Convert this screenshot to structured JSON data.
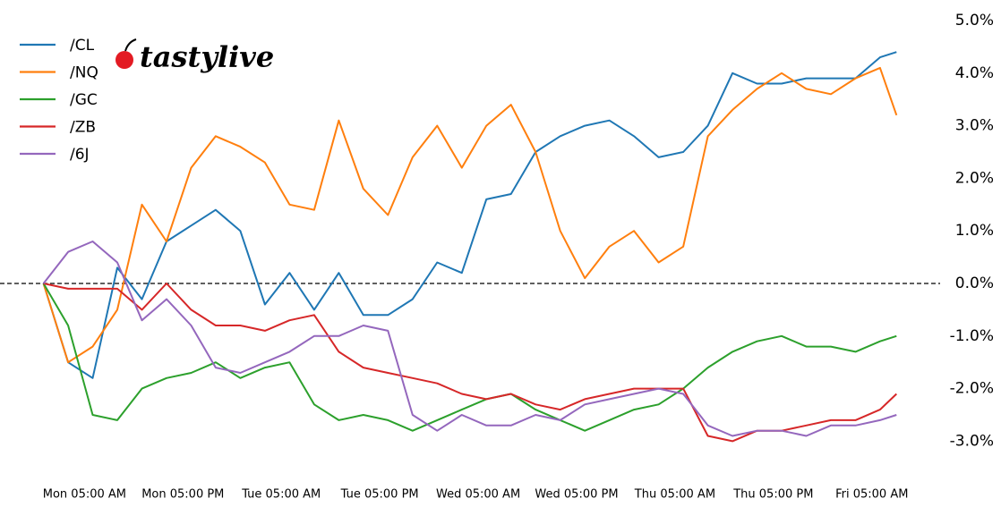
{
  "chart_data": {
    "type": "line",
    "logo": "tastylive",
    "x": [
      -5,
      -2,
      1,
      4,
      7,
      10,
      13,
      16,
      19,
      22,
      25,
      28,
      31,
      34,
      37,
      40,
      43,
      46,
      49,
      52,
      55,
      58,
      61,
      64,
      67,
      70,
      73,
      76,
      79,
      82,
      85,
      88,
      91,
      94,
      97,
      99
    ],
    "xlim": [
      -5.5,
      100.5
    ],
    "xticks": [
      {
        "value": 0,
        "label": "Mon 05:00 AM"
      },
      {
        "value": 12,
        "label": "Mon 05:00 PM"
      },
      {
        "value": 24,
        "label": "Tue 05:00 AM"
      },
      {
        "value": 36,
        "label": "Tue 05:00 PM"
      },
      {
        "value": 48,
        "label": "Wed 05:00 AM"
      },
      {
        "value": 60,
        "label": "Wed 05:00 PM"
      },
      {
        "value": 72,
        "label": "Thu 05:00 AM"
      },
      {
        "value": 84,
        "label": "Thu 05:00 PM"
      },
      {
        "value": 96,
        "label": "Fri 05:00 AM"
      }
    ],
    "ylim": [
      -3.6,
      5.2
    ],
    "yticks": [
      {
        "value": 5,
        "label": "5.0%"
      },
      {
        "value": 4,
        "label": "4.0%"
      },
      {
        "value": 3,
        "label": "3.0%"
      },
      {
        "value": 2,
        "label": "2.0%"
      },
      {
        "value": 1,
        "label": "1.0%"
      },
      {
        "value": 0,
        "label": "0.0%"
      },
      {
        "value": -1,
        "label": "-1.0%"
      },
      {
        "value": -2,
        "label": "-2.0%"
      },
      {
        "value": -3,
        "label": "-3.0%"
      }
    ],
    "y_axis_side": "right",
    "reference_line": 0,
    "grid": false,
    "legend": "upper left",
    "series": [
      {
        "name": "/CL",
        "color": "#1f77b4",
        "values": [
          0,
          -1.5,
          -1.8,
          0.3,
          -0.3,
          0.8,
          1.1,
          1.4,
          1.0,
          -0.4,
          0.2,
          -0.5,
          0.2,
          -0.6,
          -0.6,
          -0.3,
          0.4,
          0.2,
          1.6,
          1.7,
          2.5,
          2.8,
          3.0,
          3.1,
          2.8,
          2.4,
          2.5,
          3.0,
          4.0,
          3.8,
          3.8,
          3.9,
          3.9,
          3.9,
          4.3,
          4.4
        ]
      },
      {
        "name": "/NQ",
        "color": "#ff7f0e",
        "values": [
          0,
          -1.5,
          -1.2,
          -0.5,
          1.5,
          0.8,
          2.2,
          2.8,
          2.6,
          2.3,
          1.5,
          1.4,
          3.1,
          1.8,
          1.3,
          2.4,
          3.0,
          2.2,
          3.0,
          3.4,
          2.5,
          1.0,
          0.1,
          0.7,
          1.0,
          0.4,
          0.7,
          2.8,
          3.3,
          3.7,
          4.0,
          3.7,
          3.6,
          3.9,
          4.1,
          3.2
        ]
      },
      {
        "name": "/GC",
        "color": "#2ca02c",
        "values": [
          0,
          -0.8,
          -2.5,
          -2.6,
          -2.0,
          -1.8,
          -1.7,
          -1.5,
          -1.8,
          -1.6,
          -1.5,
          -2.3,
          -2.6,
          -2.5,
          -2.6,
          -2.8,
          -2.6,
          -2.4,
          -2.2,
          -2.1,
          -2.4,
          -2.6,
          -2.8,
          -2.6,
          -2.4,
          -2.3,
          -2.0,
          -1.6,
          -1.3,
          -1.1,
          -1.0,
          -1.2,
          -1.2,
          -1.3,
          -1.1,
          -1.0
        ]
      },
      {
        "name": "/ZB",
        "color": "#d62728",
        "values": [
          0,
          -0.1,
          -0.1,
          -0.1,
          -0.5,
          0.0,
          -0.5,
          -0.8,
          -0.8,
          -0.9,
          -0.7,
          -0.6,
          -1.3,
          -1.6,
          -1.7,
          -1.8,
          -1.9,
          -2.1,
          -2.2,
          -2.1,
          -2.3,
          -2.4,
          -2.2,
          -2.1,
          -2.0,
          -2.0,
          -2.0,
          -2.9,
          -3.0,
          -2.8,
          -2.8,
          -2.7,
          -2.6,
          -2.6,
          -2.4,
          -2.1
        ]
      },
      {
        "name": "/6J",
        "color": "#9467bd",
        "values": [
          0,
          0.6,
          0.8,
          0.4,
          -0.7,
          -0.3,
          -0.8,
          -1.6,
          -1.7,
          -1.5,
          -1.3,
          -1.0,
          -1.0,
          -0.8,
          -0.9,
          -2.5,
          -2.8,
          -2.5,
          -2.7,
          -2.7,
          -2.5,
          -2.6,
          -2.3,
          -2.2,
          -2.1,
          -2.0,
          -2.1,
          -2.7,
          -2.9,
          -2.8,
          -2.8,
          -2.9,
          -2.7,
          -2.7,
          -2.6,
          -2.5
        ]
      }
    ]
  }
}
